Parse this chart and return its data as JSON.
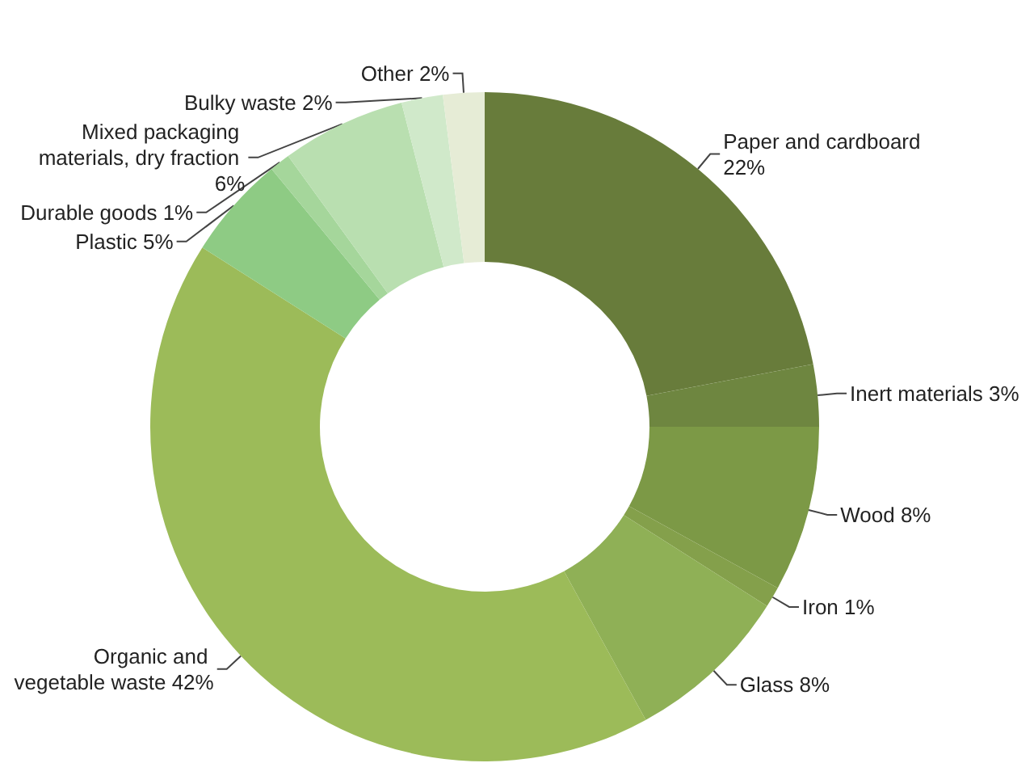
{
  "chart_data": {
    "type": "donut",
    "categories": [
      "Paper and cardboard",
      "Inert materials",
      "Wood",
      "Iron",
      "Glass",
      "Organic and vegetable waste",
      "Plastic",
      "Durable goods",
      "Mixed packaging materials, dry fraction",
      "Bulky waste",
      "Other"
    ],
    "values": [
      22,
      3,
      8,
      1,
      8,
      42,
      5,
      1,
      6,
      2,
      2
    ],
    "value_labels": [
      "22%",
      "3%",
      "8%",
      "1%",
      "8%",
      "42%",
      "5%",
      "1%",
      "6%",
      "2%",
      "2%"
    ],
    "colors": [
      "#687c3b",
      "#6e8640",
      "#7c9946",
      "#84a04b",
      "#8fb056",
      "#9cbb59",
      "#8ecb84",
      "#a5d69b",
      "#b9dfb0",
      "#d0e9ca",
      "#e6ecd6"
    ]
  }
}
